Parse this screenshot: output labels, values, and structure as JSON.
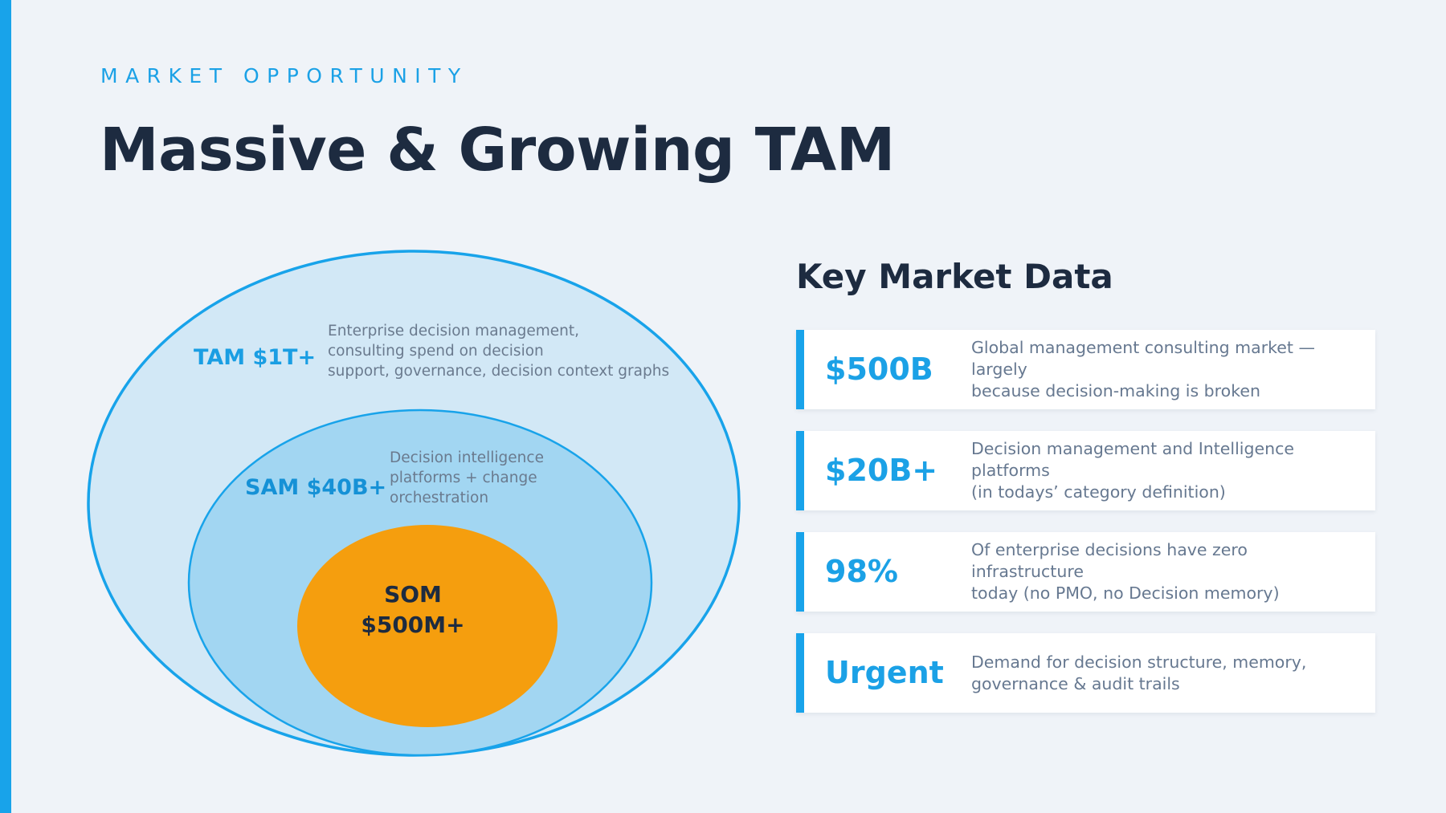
{
  "header": {
    "eyebrow": "MARKET OPPORTUNITY",
    "title": "Massive & Growing TAM"
  },
  "diagram": {
    "tam": {
      "label": "TAM  $1T+",
      "description": "Enterprise decision management,\nconsulting spend on decision\nsupport, governance, decision context graphs"
    },
    "sam": {
      "label": "SAM  $40B+",
      "description": "Decision intelligence\nplatforms + change\norchestration"
    },
    "som": {
      "label_line1": "SOM",
      "label_line2": "$500M+"
    },
    "colors": {
      "tam_fill": "#d2e8f6",
      "sam_fill": "#a2d6f2",
      "som_fill": "#f59e0e",
      "stroke": "#18a3ea"
    }
  },
  "panel": {
    "title": "Key Market Data",
    "cards": [
      {
        "value": "$500B",
        "text": "Global management consulting market — largely\nbecause decision-making is broken"
      },
      {
        "value": "$20B+",
        "text": "Decision management and Intelligence platforms\n(in todays’ category definition)"
      },
      {
        "value": "98%",
        "text": "Of enterprise decisions have zero infrastructure\ntoday (no PMO, no Decision memory)"
      },
      {
        "value": "Urgent",
        "text": "Demand for decision structure, memory,\ngovernance & audit trails"
      }
    ]
  },
  "colors": {
    "accent": "#18a3ea",
    "heading": "#1d2b40",
    "body_text": "#667890",
    "background": "#eff3f8"
  }
}
